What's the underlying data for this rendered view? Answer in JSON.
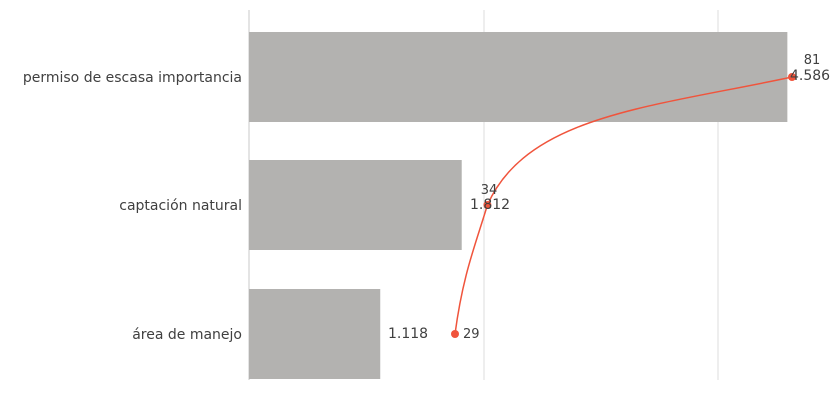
{
  "chart_data": {
    "type": "bar",
    "orientation": "horizontal",
    "categories": [
      "permiso de escasa importancia",
      "captación natural",
      "área de manejo"
    ],
    "series": [
      {
        "values": [
          4586,
          1812,
          1118
        ],
        "color": "#b3b2b0",
        "labels": [
          "4.586",
          "1.812",
          "1.118"
        ]
      },
      {
        "values": [
          81,
          34,
          29
        ],
        "color": "#f0543c",
        "labels": [
          "81",
          "34",
          "29"
        ]
      }
    ],
    "xlim": [
      0,
      4600
    ],
    "grid": true,
    "legend": "none"
  }
}
